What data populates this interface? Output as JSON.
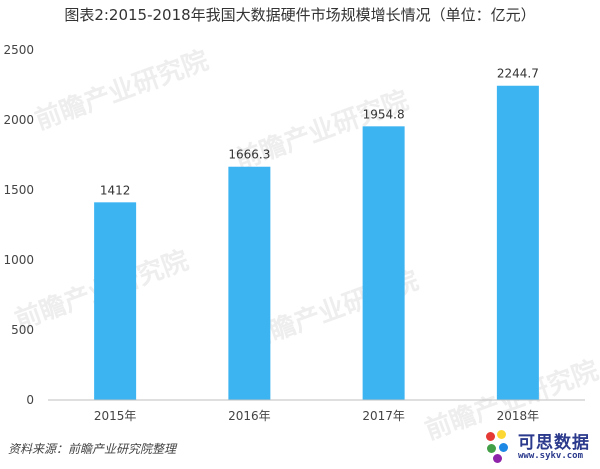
{
  "chart_data": {
    "type": "bar",
    "title": "图表2:2015-2018年我国大数据硬件市场规模增长情况（单位：亿元）",
    "categories": [
      "2015年",
      "2016年",
      "2017年",
      "2018年"
    ],
    "values": [
      1412,
      1666.3,
      1954.8,
      2244.7
    ],
    "value_labels": [
      "1412",
      "1666.3",
      "1954.8",
      "2244.7"
    ],
    "yticks": [
      "0",
      "500",
      "1000",
      "1500",
      "2000",
      "2500"
    ],
    "ylim": [
      0,
      2500
    ],
    "bar_color": "#3db4f2",
    "grid": false
  },
  "source": "资料来源：前瞻产业研究院整理",
  "watermark": "前瞻产业研究院",
  "logo": {
    "name": "可思数据",
    "url": "www.sykv.com"
  }
}
